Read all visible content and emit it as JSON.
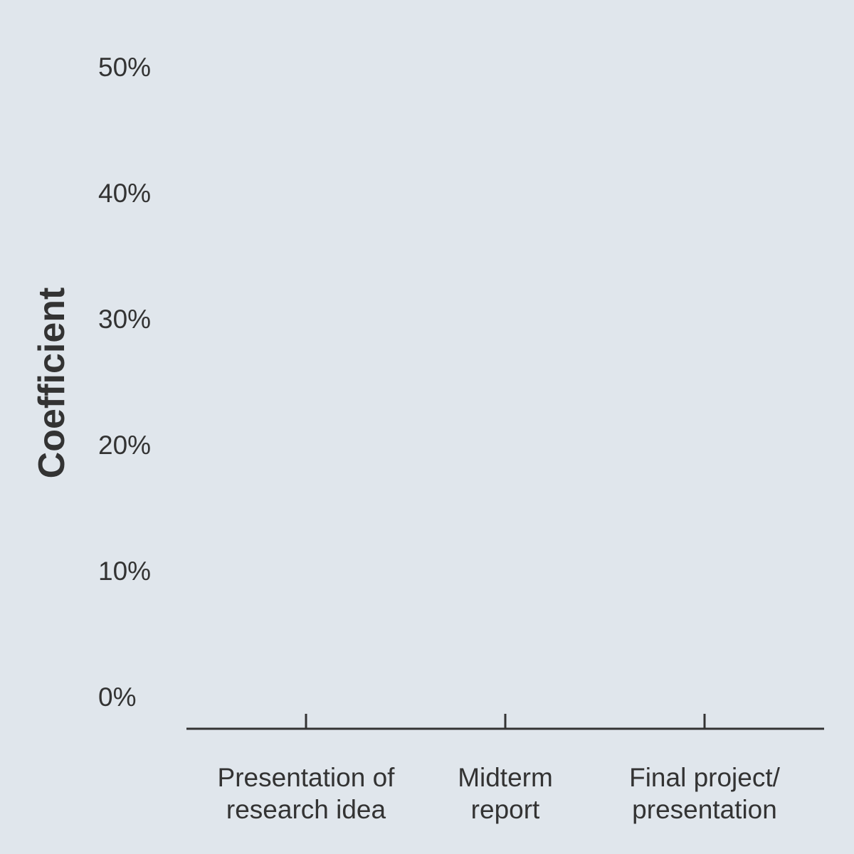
{
  "chart_data": {
    "type": "bar",
    "categories": [
      [
        "Presentation of",
        "research idea"
      ],
      [
        "Midterm",
        "report"
      ],
      [
        "Final project/",
        "presentation"
      ]
    ],
    "series": [
      {
        "values": [
          0,
          0,
          0
        ]
      }
    ],
    "ylabel": "Coefficient",
    "yticks": [
      "0%",
      "10%",
      "20%",
      "30%",
      "40%",
      "50%"
    ],
    "ytick_values": [
      0,
      10,
      20,
      30,
      40,
      50
    ],
    "ylim": [
      0,
      50
    ],
    "grid": false,
    "colors": {
      "background": "#e0e6ec",
      "text": "#333333",
      "axis": "#333333"
    }
  }
}
